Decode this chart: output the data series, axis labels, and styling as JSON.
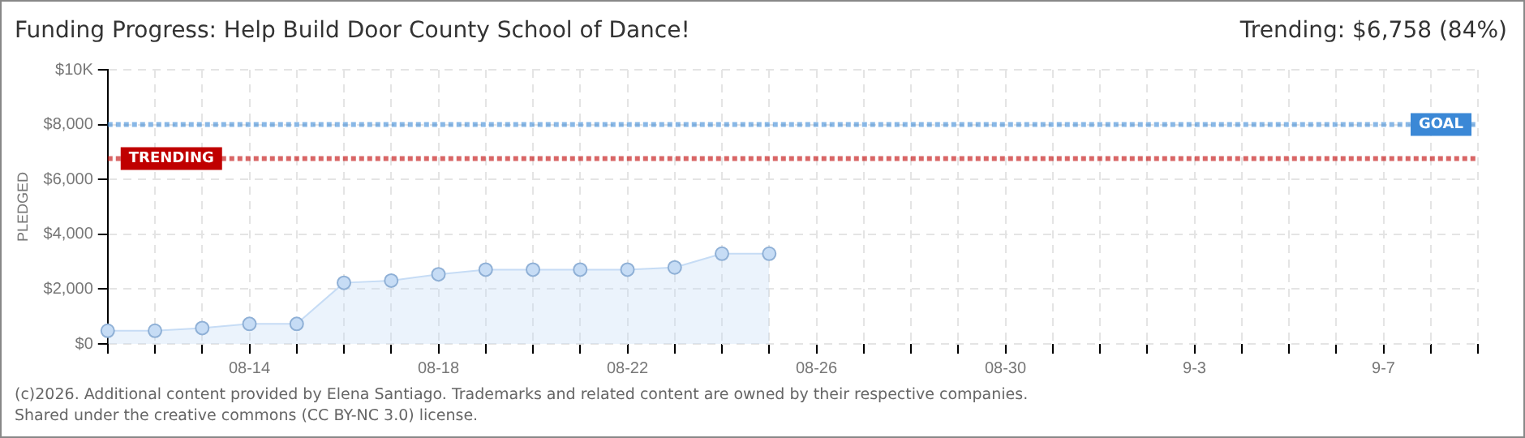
{
  "chart_data": {
    "type": "area",
    "title": "Funding Progress: Help Build Door County School of Dance!",
    "ylabel": "PLEDGED",
    "annotations": [
      "Trending: $6,758 (84%)",
      "(c)2026. Additional content provided by Elena Santiago. Trademarks and related content are owned by their respective companies.",
      "Shared under the creative commons (CC BY-NC 3.0) license."
    ],
    "categories": [
      null,
      null,
      null,
      "08-14",
      null,
      null,
      null,
      "08-18",
      null,
      null,
      null,
      "08-22",
      null,
      null,
      null,
      "08-26",
      null,
      null,
      null,
      "08-30",
      null,
      null,
      null,
      "9-3",
      null,
      null,
      null,
      "9-7",
      null,
      null
    ],
    "series": [
      {
        "color": "#c6dcf5",
        "values": [
          480,
          480,
          580,
          730,
          730,
          2230,
          2310,
          2540,
          2710,
          2710,
          2710,
          2710,
          2790,
          3290,
          3290,
          null,
          null,
          null,
          null,
          null,
          null,
          null,
          null,
          null,
          null,
          null,
          null,
          null,
          null,
          null
        ]
      }
    ],
    "ylim": [
      0,
      10000
    ],
    "yticks": [
      {
        "value": 0,
        "label": "$0"
      },
      {
        "value": 2000,
        "label": "$2,000"
      },
      {
        "value": 4000,
        "label": "$4,000"
      },
      {
        "value": 6000,
        "label": "$6,000"
      },
      {
        "value": 8000,
        "label": "$8,000"
      },
      {
        "value": 10000,
        "label": "$10K"
      }
    ],
    "ref_lines": [
      {
        "axis": "y",
        "value": 8000,
        "label": "GOAL",
        "color": "#3b88d6",
        "line_style": "dotted"
      },
      {
        "axis": "y",
        "value": 6758,
        "label": "TRENDING",
        "color": "#c00000",
        "line_style": "dotted"
      }
    ],
    "grid": true,
    "legend": false,
    "marker": "circle"
  }
}
